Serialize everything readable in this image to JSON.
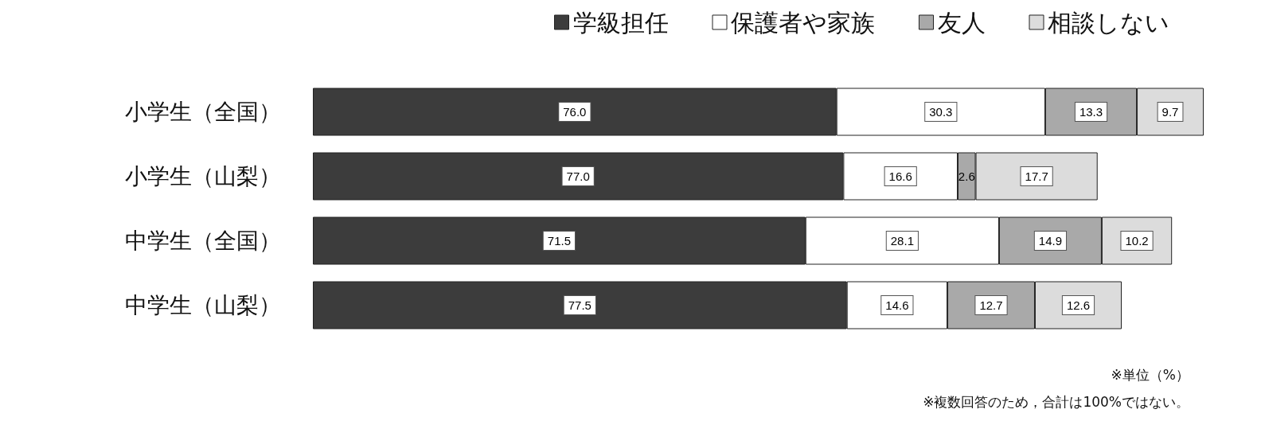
{
  "chart_data": {
    "type": "bar",
    "orientation": "horizontal",
    "stacked": true,
    "legend": "top right",
    "tick_labels": "y",
    "categories": [
      "小学生（全国）",
      "小学生（山梨）",
      "中学生（全国）",
      "中学生（山梨）"
    ],
    "series": [
      {
        "name": "学級担任",
        "color": "#3c3c3c",
        "values": [
          76.0,
          77.0,
          71.5,
          77.5
        ],
        "value_labels": [
          "76.0",
          "77.0",
          "71.5",
          "77.5"
        ]
      },
      {
        "name": "保護者や家族",
        "color": "#ffffff",
        "values": [
          30.3,
          16.6,
          28.1,
          14.6
        ],
        "value_labels": [
          "30.3",
          "16.6",
          "28.1",
          "14.6"
        ]
      },
      {
        "name": "友人",
        "color": "#a9a9a9",
        "values": [
          13.3,
          2.6,
          14.9,
          12.7
        ],
        "value_labels": [
          "13.3",
          "2.6",
          "14.9",
          "12.7"
        ]
      },
      {
        "name": "相談しない",
        "color": "#dcdcdc",
        "values": [
          9.7,
          17.7,
          10.2,
          12.6
        ],
        "value_labels": [
          "9.7",
          "17.7",
          "10.2",
          "12.6"
        ]
      }
    ],
    "annotations": [
      "※単位（%）",
      "※複数回答のため，合計は100%ではない。"
    ]
  }
}
